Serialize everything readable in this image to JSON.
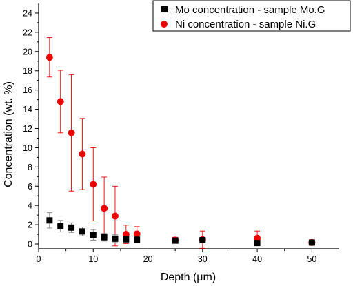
{
  "chart_data": {
    "type": "scatter",
    "xlabel": "Depth (μm)",
    "ylabel": "Concentration (wt. %)",
    "xlim": [
      0,
      55
    ],
    "ylim": [
      -0.5,
      25
    ],
    "xticks": [
      0,
      10,
      20,
      30,
      40,
      50
    ],
    "yticks": [
      0,
      2,
      4,
      6,
      8,
      10,
      12,
      14,
      16,
      18,
      20,
      22,
      24
    ],
    "grid": false,
    "legend_position": "top-right",
    "series": [
      {
        "name": "Mo concentration - sample Mo.G",
        "marker": "square",
        "color": "#000000",
        "error_color": "#808080",
        "points": [
          {
            "x": 2,
            "y": 2.45,
            "err": 0.8
          },
          {
            "x": 4,
            "y": 1.85,
            "err": 0.6
          },
          {
            "x": 6,
            "y": 1.7,
            "err": 0.5
          },
          {
            "x": 8,
            "y": 1.3,
            "err": 0.45
          },
          {
            "x": 10,
            "y": 0.95,
            "err": 0.55
          },
          {
            "x": 12,
            "y": 0.7,
            "err": 0.4
          },
          {
            "x": 14,
            "y": 0.55,
            "err": 0.4
          },
          {
            "x": 16,
            "y": 0.5,
            "err": 0.35
          },
          {
            "x": 18,
            "y": 0.45,
            "err": 0.2
          },
          {
            "x": 25,
            "y": 0.35,
            "err": 0.25
          },
          {
            "x": 30,
            "y": 0.4,
            "err": 0.2
          },
          {
            "x": 40,
            "y": 0.1,
            "err": 0.2
          },
          {
            "x": 50,
            "y": 0.15,
            "err": 0.15
          }
        ]
      },
      {
        "name": "Ni concentration - sample Ni.G",
        "marker": "circle",
        "color": "#ee0000",
        "error_color": "#ee0000",
        "points": [
          {
            "x": 2,
            "y": 19.4,
            "err": 2.05
          },
          {
            "x": 4,
            "y": 14.8,
            "err": 3.25
          },
          {
            "x": 6,
            "y": 11.55,
            "err": 6.05
          },
          {
            "x": 8,
            "y": 9.35,
            "err": 3.7
          },
          {
            "x": 10,
            "y": 6.2,
            "err": 3.8
          },
          {
            "x": 12,
            "y": 3.7,
            "err": 3.25
          },
          {
            "x": 14,
            "y": 2.9,
            "err": 3.1
          },
          {
            "x": 16,
            "y": 1.0,
            "err": 0.95
          },
          {
            "x": 18,
            "y": 1.05,
            "err": 0.75
          },
          {
            "x": 25,
            "y": 0.4,
            "err": 0.3
          },
          {
            "x": 30,
            "y": 0.45,
            "err": 0.9
          },
          {
            "x": 40,
            "y": 0.6,
            "err": 0.75
          },
          {
            "x": 50,
            "y": 0.15,
            "err": 0.2
          }
        ]
      }
    ]
  }
}
